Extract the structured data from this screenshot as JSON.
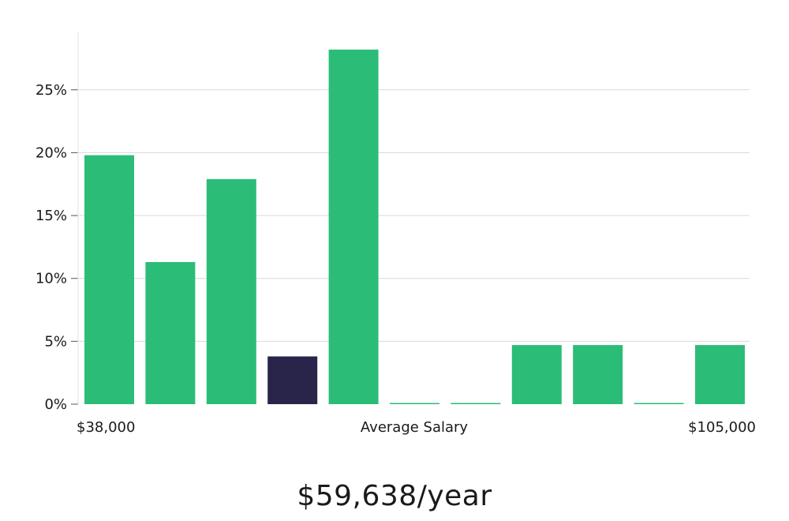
{
  "chart_data": {
    "type": "bar",
    "values": [
      19.8,
      11.3,
      17.9,
      3.8,
      28.2,
      0,
      0,
      4.7,
      4.7,
      0,
      4.7
    ],
    "highlight_index": 3,
    "ylim": [
      0,
      30
    ],
    "yticks": [
      0,
      5,
      10,
      15,
      20,
      25
    ],
    "ytick_suffix": "%",
    "x_min_label": "$38,000",
    "x_center_label": "Average Salary",
    "x_max_label": "$105,000",
    "grid": true,
    "colors": {
      "bar": "#2bbd77",
      "highlight": "#28244a",
      "grid": "#d9d9d9",
      "axis": "#e2e2e2",
      "text": "#1a1a1a"
    }
  },
  "headline": "$59,638/year"
}
